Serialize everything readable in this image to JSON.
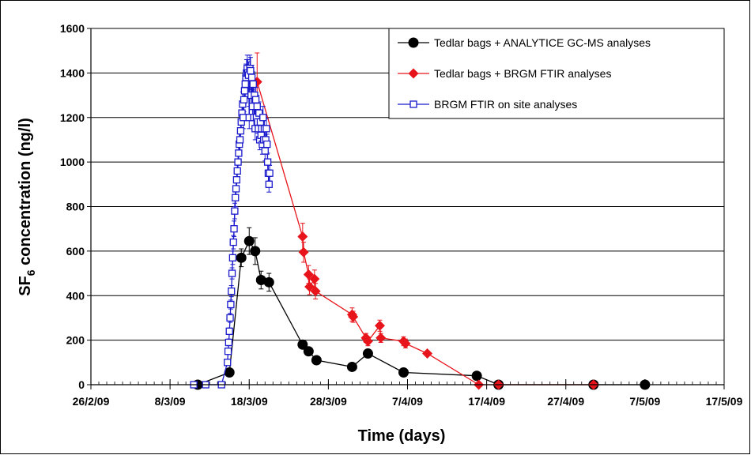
{
  "chart_data": {
    "type": "line",
    "title": "",
    "xlabel": "Time (days)",
    "ylabel": {
      "prefix": "SF",
      "subscript": "6",
      "suffix": " concentration (ng/l)"
    },
    "xlim": [
      "2009-02-26",
      "2009-05-17"
    ],
    "ylim": [
      0,
      1600
    ],
    "y_ticks": [
      0,
      200,
      400,
      600,
      800,
      1000,
      1200,
      1400,
      1600
    ],
    "x_tick_labels": [
      "26/2/09",
      "8/3/09",
      "18/3/09",
      "28/3/09",
      "7/4/09",
      "17/4/09",
      "27/4/09",
      "7/5/09",
      "17/5/09"
    ],
    "x_tick_dates": [
      "2009-02-26",
      "2009-03-08",
      "2009-03-18",
      "2009-03-28",
      "2009-04-07",
      "2009-04-17",
      "2009-04-27",
      "2009-05-07",
      "2009-05-17"
    ],
    "grid": {
      "horizontal": true,
      "vertical": false
    },
    "legend_position": "top-right",
    "series": [
      {
        "name": "Tedlar bags + ANALYTICE GC-MS analyses",
        "color": "#000000",
        "marker": "circle",
        "x": [
          "2009-03-11T12:00",
          "2009-03-15T12:00",
          "2009-03-17T00:00",
          "2009-03-18T00:00",
          "2009-03-18T18:00",
          "2009-03-19T12:00",
          "2009-03-20T12:00",
          "2009-03-24T18:00",
          "2009-03-25T12:00",
          "2009-03-26T12:00",
          "2009-03-31T00:00",
          "2009-04-02T00:00",
          "2009-04-06T12:00",
          "2009-04-15T18:00",
          "2009-04-18T12:00",
          "2009-04-30T12:00",
          "2009-05-07T00:00"
        ],
        "y": [
          0,
          55,
          570,
          645,
          600,
          470,
          460,
          180,
          150,
          110,
          80,
          140,
          55,
          40,
          0,
          0,
          0
        ],
        "err": [
          0,
          0,
          40,
          60,
          60,
          40,
          40,
          0,
          0,
          0,
          0,
          0,
          0,
          0,
          0,
          0,
          0
        ]
      },
      {
        "name": "Tedlar bags + BRGM FTIR analyses",
        "color": "#e8141b",
        "marker": "diamond",
        "x": [
          "2009-03-19T00:00",
          "2009-03-24T18:00",
          "2009-03-24T21:00",
          "2009-03-25T12:00",
          "2009-03-25T15:00",
          "2009-03-26T06:00",
          "2009-03-26T09:00",
          "2009-03-31T00:00",
          "2009-03-31T03:00",
          "2009-04-01T18:00",
          "2009-04-02T00:00",
          "2009-04-03T12:00",
          "2009-04-03T15:00",
          "2009-04-06T12:00",
          "2009-04-06T18:00",
          "2009-04-09T12:00",
          "2009-04-16T00:00",
          "2009-04-18T12:00",
          "2009-04-30T12:00"
        ],
        "y": [
          1360,
          665,
          595,
          495,
          440,
          475,
          420,
          315,
          305,
          210,
          195,
          265,
          210,
          195,
          185,
          140,
          0,
          0,
          0
        ],
        "err": [
          130,
          60,
          45,
          40,
          35,
          40,
          35,
          30,
          25,
          20,
          20,
          25,
          20,
          20,
          20,
          0,
          0,
          0,
          0
        ]
      },
      {
        "name": "BRGM FTIR on site analyses",
        "color": "#1a1acc",
        "marker": "square-open",
        "x": [
          "2009-03-11T00:00",
          "2009-03-12T12:00",
          "2009-03-14T12:00",
          "2009-03-15T06:00",
          "2009-03-15T08:00",
          "2009-03-15T10:00",
          "2009-03-15T12:00",
          "2009-03-15T14:00",
          "2009-03-15T16:00",
          "2009-03-15T18:00",
          "2009-03-15T20:00",
          "2009-03-15T22:00",
          "2009-03-16T00:00",
          "2009-03-16T02:00",
          "2009-03-16T04:00",
          "2009-03-16T06:00",
          "2009-03-16T08:00",
          "2009-03-16T10:00",
          "2009-03-16T12:00",
          "2009-03-16T14:00",
          "2009-03-16T16:00",
          "2009-03-16T18:00",
          "2009-03-16T20:00",
          "2009-03-16T22:00",
          "2009-03-17T00:00",
          "2009-03-17T02:00",
          "2009-03-17T04:00",
          "2009-03-17T06:00",
          "2009-03-17T08:00",
          "2009-03-17T10:00",
          "2009-03-17T12:00",
          "2009-03-17T14:00",
          "2009-03-17T16:00",
          "2009-03-17T18:00",
          "2009-03-17T20:00",
          "2009-03-17T22:00",
          "2009-03-18T00:00",
          "2009-03-18T02:00",
          "2009-03-18T04:00",
          "2009-03-18T06:00",
          "2009-03-18T08:00",
          "2009-03-18T10:00",
          "2009-03-18T12:00",
          "2009-03-18T14:00",
          "2009-03-18T16:00",
          "2009-03-18T18:00",
          "2009-03-18T20:00",
          "2009-03-18T22:00",
          "2009-03-19T00:00",
          "2009-03-19T02:00",
          "2009-03-19T04:00",
          "2009-03-19T06:00",
          "2009-03-19T08:00",
          "2009-03-19T10:00",
          "2009-03-19T12:00",
          "2009-03-19T14:00",
          "2009-03-19T16:00",
          "2009-03-19T18:00",
          "2009-03-19T20:00",
          "2009-03-19T22:00",
          "2009-03-20T00:00",
          "2009-03-20T02:00",
          "2009-03-20T04:00",
          "2009-03-20T06:00",
          "2009-03-20T08:00",
          "2009-03-20T10:00",
          "2009-03-20T12:00",
          "2009-03-20T14:00"
        ],
        "y": [
          0,
          0,
          0,
          100,
          150,
          190,
          240,
          300,
          360,
          420,
          500,
          570,
          640,
          700,
          780,
          840,
          880,
          920,
          960,
          1000,
          1040,
          1080,
          1100,
          1140,
          1180,
          1220,
          1260,
          1200,
          1280,
          1320,
          1350,
          1380,
          1400,
          1420,
          1400,
          1390,
          1200,
          1420,
          1410,
          1300,
          1380,
          1250,
          1350,
          1200,
          1300,
          1150,
          1280,
          1200,
          1250,
          1180,
          1150,
          1220,
          1100,
          1180,
          1120,
          1150,
          1080,
          1200,
          1100,
          1150,
          1050,
          1100,
          1150,
          1080,
          1000,
          950,
          900,
          950
        ],
        "err": [
          0,
          0,
          0,
          10,
          12,
          15,
          15,
          20,
          20,
          25,
          25,
          30,
          30,
          35,
          35,
          40,
          40,
          40,
          45,
          45,
          45,
          50,
          50,
          50,
          50,
          50,
          55,
          50,
          55,
          55,
          55,
          60,
          60,
          60,
          60,
          60,
          50,
          60,
          60,
          55,
          55,
          50,
          55,
          50,
          55,
          50,
          55,
          50,
          50,
          50,
          50,
          50,
          45,
          50,
          45,
          45,
          45,
          50,
          45,
          45,
          45,
          45,
          45,
          45,
          40,
          40,
          35,
          35
        ]
      }
    ]
  }
}
